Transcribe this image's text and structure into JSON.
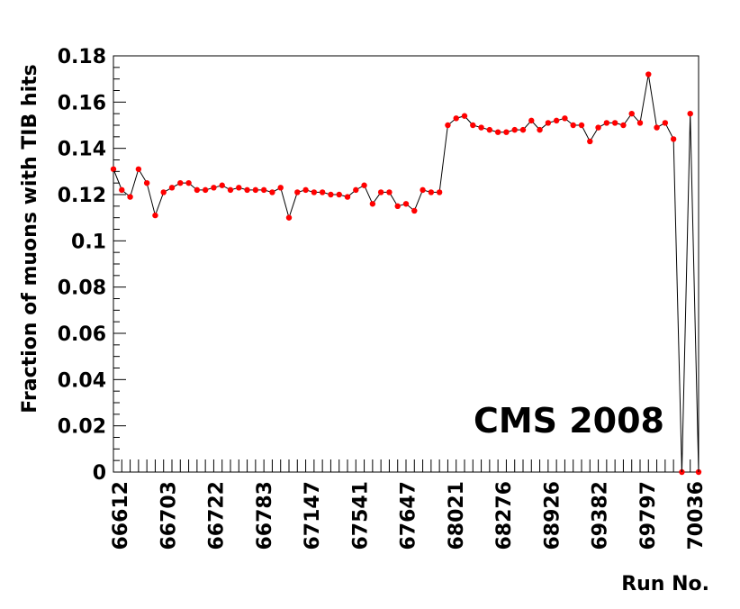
{
  "chart_data": {
    "type": "scatter",
    "ylabel": "Fraction of muons with TIB hits",
    "xlabel": "Run No.",
    "annotation": "CMS 2008",
    "ylim": [
      0,
      0.18
    ],
    "yticks": [
      "0",
      "0.02",
      "0.04",
      "0.06",
      "0.08",
      "0.1",
      "0.12",
      "0.14",
      "0.16",
      "0.18"
    ],
    "xtick_labels": [
      "66612",
      "66703",
      "66722",
      "66783",
      "67147",
      "67541",
      "67647",
      "68021",
      "68276",
      "68926",
      "69382",
      "69797",
      "70036"
    ],
    "grid": false,
    "marker_color": "#ff0000",
    "line_color": "#000000",
    "series": [
      {
        "values": [
          0.131,
          0.122,
          0.119,
          0.131,
          0.125,
          0.111,
          0.121,
          0.123,
          0.125,
          0.125,
          0.122,
          0.122,
          0.123,
          0.124,
          0.122,
          0.123,
          0.122,
          0.122,
          0.122,
          0.121,
          0.123,
          0.11,
          0.121,
          0.122,
          0.121,
          0.121,
          0.12,
          0.12,
          0.119,
          0.122,
          0.124,
          0.116,
          0.121,
          0.121,
          0.115,
          0.116,
          0.113,
          0.122,
          0.121,
          0.121,
          0.15,
          0.153,
          0.154,
          0.15,
          0.149,
          0.148,
          0.147,
          0.147,
          0.148,
          0.148,
          0.152,
          0.148,
          0.151,
          0.152,
          0.153,
          0.15,
          0.15,
          0.143,
          0.149,
          0.151,
          0.151,
          0.15,
          0.155,
          0.151,
          0.172,
          0.149,
          0.151,
          0.144,
          0.0,
          0.155,
          0.0
        ]
      }
    ]
  }
}
